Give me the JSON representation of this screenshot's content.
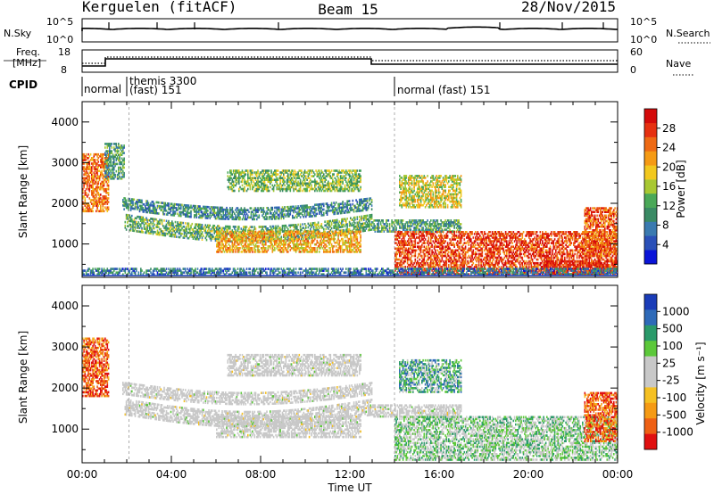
{
  "header": {
    "station": "Kerguelen (fitACF)",
    "beam": "Beam 15",
    "date": "28/Nov/2015"
  },
  "top_panels": {
    "nsky_label": "N.Sky",
    "nsky_ticks": [
      "10^5",
      "10^0"
    ],
    "nsearch_label": "N.Search",
    "freq_label_1": "Freq.",
    "freq_label_2": "[MHz]",
    "freq_ticks": [
      "18",
      "8"
    ],
    "nave_label": "Nave",
    "nave_ticks": [
      "60",
      "0"
    ],
    "cpid_label": "CPID",
    "modes": [
      {
        "name": "normal",
        "start": 0.0,
        "end": 2.1
      },
      {
        "name": "themis 3300",
        "sub": "(fast) 151",
        "start": 2.1,
        "end": 14.0
      },
      {
        "name": "normal (fast) 151",
        "start": 14.0,
        "end": 24.0
      }
    ]
  },
  "chart_data": [
    {
      "type": "heatmap",
      "title": "",
      "ylabel": "Slant Range [km]",
      "colorbar_label": "Power [dB]",
      "xlim": [
        0,
        24
      ],
      "ylim": [
        180,
        4500
      ],
      "yticks": [
        1000,
        2000,
        3000,
        4000
      ],
      "colorbar_ticks": [
        "4",
        "8",
        "12",
        "16",
        "20",
        "24",
        "28"
      ],
      "colorbar_colors": [
        "#0a14d8",
        "#2a50b8",
        "#3a7ab0",
        "#3a8a64",
        "#4aa858",
        "#a8c832",
        "#f2c81e",
        "#f59a14",
        "#ee6a14",
        "#e63010",
        "#d40a0a"
      ],
      "bands": [
        {
          "t0": 0.0,
          "t1": 1.2,
          "r0": 1800,
          "r1": 3200,
          "level": 0.75
        },
        {
          "t0": 1.0,
          "t1": 1.9,
          "r0": 2600,
          "r1": 3500,
          "level": 0.35
        },
        {
          "t0": 1.8,
          "t1": 13.0,
          "r0": 1850,
          "r1": 2150,
          "level": 0.3,
          "drift": -250
        },
        {
          "t0": 1.9,
          "t1": 13.0,
          "r0": 1350,
          "r1": 1750,
          "level": 0.4,
          "drift": -300
        },
        {
          "t0": 6.0,
          "t1": 12.5,
          "r0": 800,
          "r1": 1300,
          "level": 0.65
        },
        {
          "t0": 6.5,
          "t1": 12.5,
          "r0": 2300,
          "r1": 2800,
          "level": 0.45
        },
        {
          "t0": 13.0,
          "t1": 17.0,
          "r0": 1300,
          "r1": 1600,
          "level": 0.35
        },
        {
          "t0": 14.2,
          "t1": 17.0,
          "r0": 1900,
          "r1": 2700,
          "level": 0.55
        },
        {
          "t0": 14.0,
          "t1": 24.0,
          "r0": 250,
          "r1": 1300,
          "level": 0.85
        },
        {
          "t0": 20.5,
          "t1": 24.0,
          "r0": 250,
          "r1": 600,
          "level": 0.9
        },
        {
          "t0": 22.5,
          "t1": 24.0,
          "r0": 700,
          "r1": 1900,
          "level": 0.8
        },
        {
          "t0": 0.0,
          "t1": 24.0,
          "r0": 200,
          "r1": 400,
          "level": 0.25
        }
      ]
    },
    {
      "type": "heatmap",
      "title": "",
      "ylabel": "Slant Range [km]",
      "colorbar_label": "Velocity [m s⁻¹]",
      "xlabel": "Time UT",
      "xlim": [
        0,
        24
      ],
      "ylim": [
        180,
        4500
      ],
      "yticks": [
        1000,
        2000,
        3000,
        4000
      ],
      "xticks": [
        "00:00",
        "04:00",
        "08:00",
        "12:00",
        "16:00",
        "20:00",
        "00:00"
      ],
      "colorbar_ticks": [
        "1000",
        "500",
        "100",
        "25",
        "-25",
        "-100",
        "-500",
        "-1000"
      ],
      "colorbar_colors": [
        "#1a3cb8",
        "#2e6ab8",
        "#2a9a6a",
        "#5cc83a",
        "#c8c8c8",
        "#c8c8c8",
        "#f5c022",
        "#f59a14",
        "#ee6014",
        "#e01010"
      ],
      "bands": [
        {
          "t0": 0.0,
          "t1": 1.2,
          "r0": 1800,
          "r1": 3200,
          "level": 0.85
        },
        {
          "t0": 1.8,
          "t1": 13.0,
          "r0": 1850,
          "r1": 2150,
          "level": 0.5,
          "drift": -250
        },
        {
          "t0": 1.9,
          "t1": 13.0,
          "r0": 1350,
          "r1": 1750,
          "level": 0.5,
          "drift": -300
        },
        {
          "t0": 6.0,
          "t1": 12.5,
          "r0": 800,
          "r1": 1300,
          "level": 0.5
        },
        {
          "t0": 6.5,
          "t1": 12.5,
          "r0": 2300,
          "r1": 2800,
          "level": 0.5
        },
        {
          "t0": 13.0,
          "t1": 17.0,
          "r0": 1300,
          "r1": 1600,
          "level": 0.5
        },
        {
          "t0": 14.2,
          "t1": 17.0,
          "r0": 1900,
          "r1": 2700,
          "level": 0.3
        },
        {
          "t0": 14.0,
          "t1": 24.0,
          "r0": 250,
          "r1": 1300,
          "level": 0.4
        },
        {
          "t0": 22.5,
          "t1": 24.0,
          "r0": 700,
          "r1": 1900,
          "level": 0.85
        }
      ]
    }
  ]
}
